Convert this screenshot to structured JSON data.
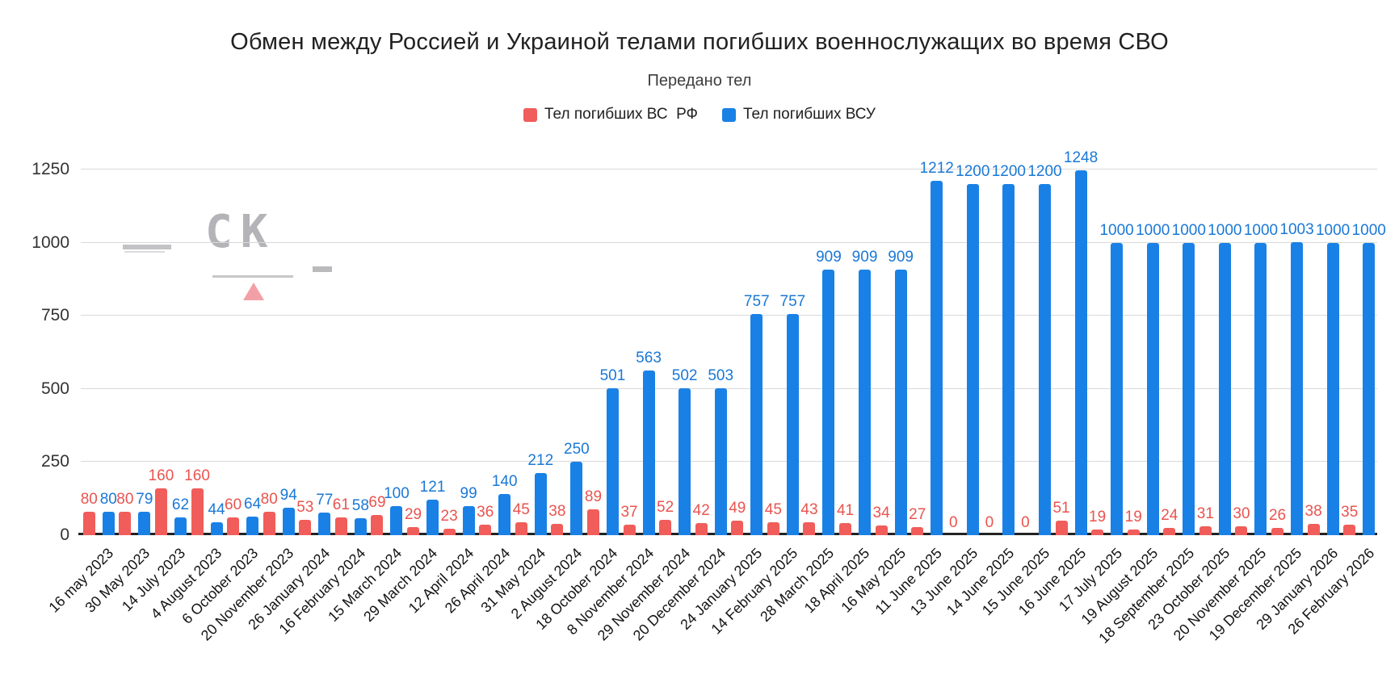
{
  "title": "Обмен между Россией и Украиной телами погибших военнослужащих во время СВО",
  "subtitle": "Передано тел",
  "legend": [
    {
      "label": "Тел погибших ВС  РФ",
      "color": "#f05d5a"
    },
    {
      "label": "Тел погибших ВСУ",
      "color": "#1981e6"
    }
  ],
  "watermark": {
    "text": "СК"
  },
  "colors": {
    "rf_bar": "#f05d5a",
    "vsu_bar": "#1981e6",
    "rf_label": "#e9544f",
    "vsu_label": "#1a78d6",
    "gridline": "#d9d9d9",
    "axis": "#222222"
  },
  "chart_data": {
    "type": "bar",
    "title": "Обмен между Россией и Украиной телами погибших военнослужащих во время СВО",
    "subtitle": "Передано тел",
    "xlabel": "",
    "ylabel": "",
    "ylim": [
      0,
      1250
    ],
    "yticks": [
      0,
      250,
      500,
      750,
      1000,
      1250
    ],
    "grid": true,
    "legend_position": "top",
    "categories": [
      "16 may 2023",
      "30 May 2023",
      "14 July 2023",
      "4 August 2023",
      "6 October 2023",
      "20 November 2023",
      "26 January 2024",
      "16 February 2024",
      "15 March 2024",
      "29 March 2024",
      "12 April 2024",
      "26 April 2024",
      "31 May 2024",
      "2 August 2024",
      "18 October 2024",
      "8 November 2024",
      "29 November 2024",
      "20 December 2024",
      "24 January 2025",
      "14 February 2025",
      "28 March 2025",
      "18 April 2025",
      "16 May 2025",
      "11 June 2025",
      "13 June 2025",
      "14 June 2025",
      "15 June 2025",
      "16 June 2025",
      "17 July 2025",
      "19 August 2025",
      "18 September 2025",
      "23 October 2025",
      "20 November 2025",
      "19 December 2025",
      "29 January 2026",
      "26 February 2026"
    ],
    "series": [
      {
        "name": "Тел погибших ВС  РФ",
        "color": "#f05d5a",
        "label_color": "#e9544f",
        "values": [
          80,
          80,
          160,
          160,
          60,
          80,
          53,
          61,
          69,
          29,
          23,
          36,
          45,
          38,
          89,
          37,
          52,
          42,
          49,
          45,
          43,
          41,
          34,
          27,
          0,
          0,
          0,
          51,
          19,
          19,
          24,
          31,
          30,
          26,
          38,
          35
        ]
      },
      {
        "name": "Тел погибших ВСУ",
        "color": "#1981e6",
        "label_color": "#1a78d6",
        "values": [
          80,
          79,
          62,
          44,
          64,
          94,
          77,
          58,
          100,
          121,
          99,
          140,
          212,
          250,
          501,
          563,
          502,
          503,
          757,
          757,
          909,
          909,
          909,
          1212,
          1200,
          1200,
          1200,
          1248,
          1000,
          1000,
          1000,
          1000,
          1000,
          1003,
          1000,
          1000
        ]
      }
    ]
  }
}
